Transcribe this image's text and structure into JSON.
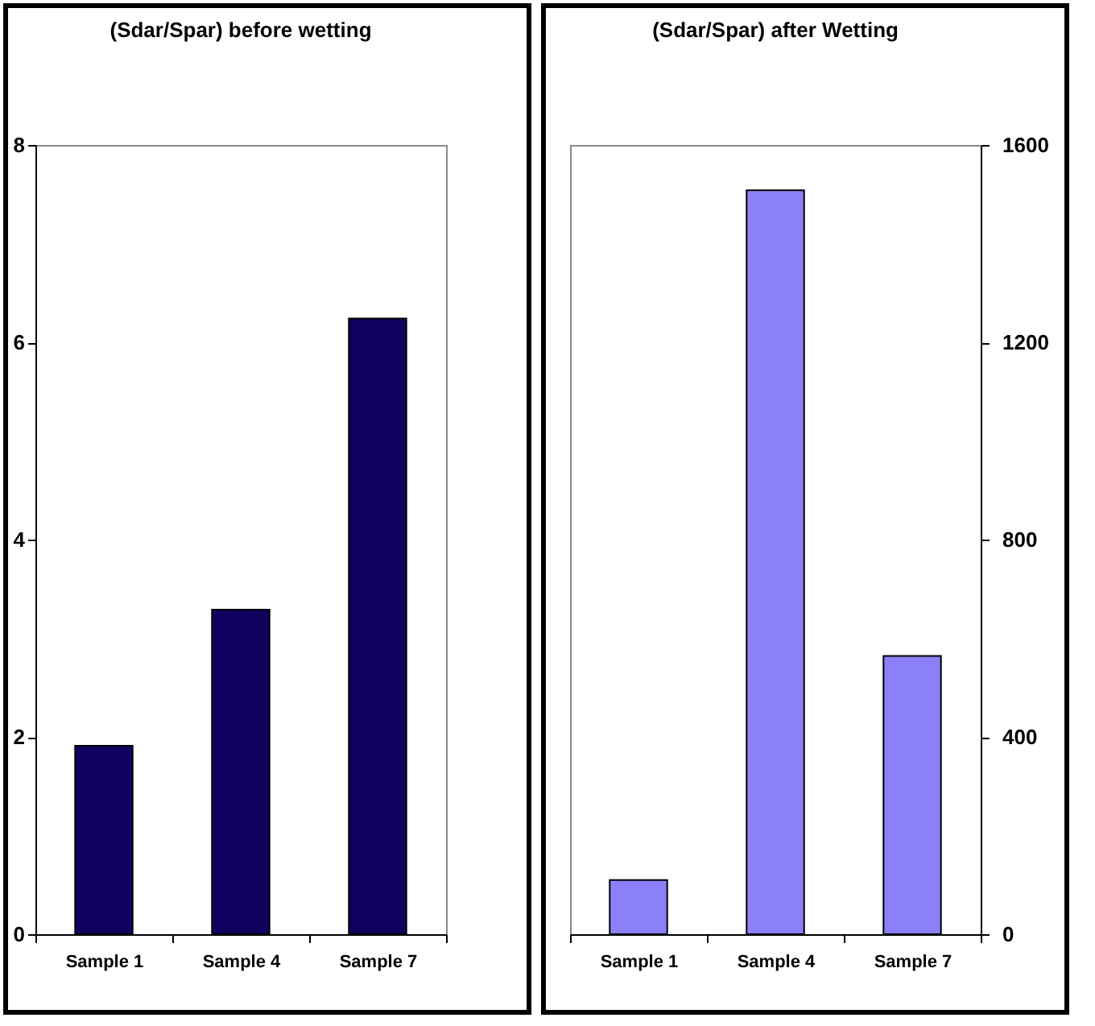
{
  "chart_data": [
    {
      "type": "bar",
      "title": "(Sdar/Spar) before wetting",
      "categories": [
        "Sample 1",
        "Sample 4",
        "Sample 7"
      ],
      "series": [
        {
          "color": "#12005e",
          "values": [
            1.91,
            3.29,
            6.24
          ]
        }
      ],
      "ylim": [
        0,
        8
      ],
      "yticks": [
        0,
        2,
        4,
        6,
        8
      ]
    },
    {
      "type": "bar",
      "title": "(Sdar/Spar) after Wetting",
      "categories": [
        "Sample 1",
        "Sample 4",
        "Sample 7"
      ],
      "series": [
        {
          "color": "#8c80f8",
          "values": [
            110,
            1508,
            564
          ],
          "axis": "y2"
        }
      ],
      "y2lim": [
        0,
        1600
      ],
      "y2ticks": [
        0,
        400,
        800,
        1200,
        1600
      ]
    }
  ]
}
